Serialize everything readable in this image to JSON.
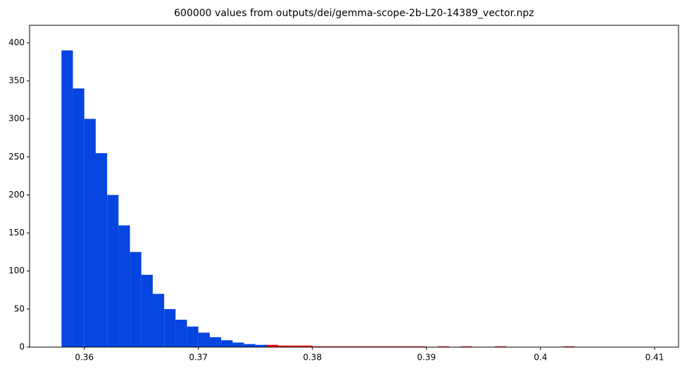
{
  "chart_data": {
    "type": "histogram",
    "title": "600000 values from outputs/dei/gemma-scope-2b-L20-14389_vector.npz",
    "bins": [
      0.358,
      0.359,
      0.36,
      0.361,
      0.362,
      0.363,
      0.364,
      0.365,
      0.366,
      0.367,
      0.368,
      0.369,
      0.37,
      0.371,
      0.372,
      0.373,
      0.374,
      0.375,
      0.376,
      0.377,
      0.378,
      0.379,
      0.38,
      0.381,
      0.382,
      0.383,
      0.384,
      0.385,
      0.386,
      0.387,
      0.388,
      0.389,
      0.39,
      0.391,
      0.392,
      0.393,
      0.394,
      0.395,
      0.396,
      0.397,
      0.398,
      0.399,
      0.4,
      0.401,
      0.402,
      0.403,
      0.404,
      0.405,
      0.406,
      0.407,
      0.408,
      0.409,
      0.41,
      0.411
    ],
    "series": [
      {
        "color": "#0645e0",
        "values": [
          390,
          340,
          300,
          255,
          200,
          160,
          125,
          95,
          70,
          50,
          36,
          27,
          19,
          13,
          9,
          6,
          4,
          3,
          0,
          0,
          0,
          0,
          0,
          0,
          0,
          0,
          0,
          0,
          0,
          0,
          0,
          0,
          0,
          0,
          0,
          0,
          0,
          0,
          0,
          0,
          0,
          0,
          0,
          0,
          0,
          0,
          0,
          0,
          0,
          0,
          0,
          0,
          0
        ]
      },
      {
        "color": "#ff0000",
        "values": [
          0,
          0,
          0,
          0,
          0,
          0,
          0,
          0,
          0,
          0,
          0,
          0,
          0,
          0,
          0,
          0,
          0,
          0,
          3,
          2,
          2,
          2,
          1,
          1,
          1,
          1,
          1,
          1,
          1,
          1,
          1,
          1,
          0,
          1,
          0,
          1,
          0,
          0,
          1,
          0,
          0,
          0,
          0,
          0,
          1,
          0,
          0,
          0,
          0,
          0,
          0,
          0,
          0
        ]
      }
    ],
    "xlim": [
      0.3552,
      0.4121
    ],
    "ylim": [
      0,
      423
    ],
    "xticks": [
      0.36,
      0.37,
      0.38,
      0.39,
      0.4,
      0.41
    ],
    "yticks": [
      0,
      50,
      100,
      150,
      200,
      250,
      300,
      350,
      400
    ]
  }
}
